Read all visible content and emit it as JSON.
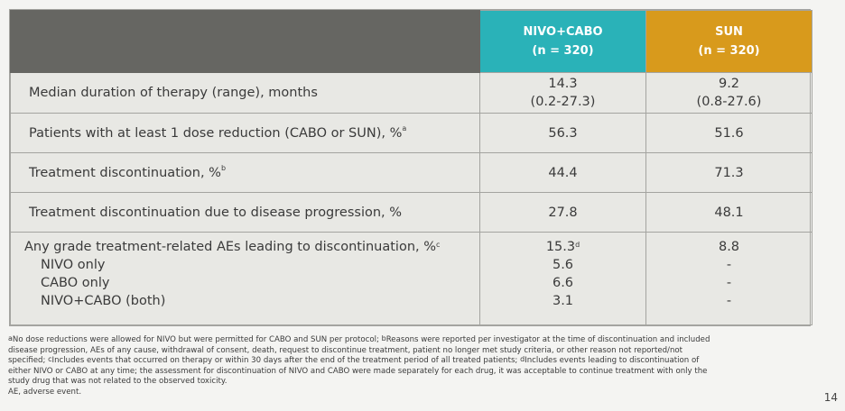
{
  "header": {
    "nivo_name": "NIVO+CABO",
    "nivo_n": "(n = 320)",
    "sun_name": "SUN",
    "sun_n": "(n = 320)",
    "nivo_color": "#2ab2b8",
    "sun_color": "#d89a1c"
  },
  "rows": [
    {
      "label": "Median duration of therapy (range), months",
      "nivo": [
        "14.3",
        "(0.2-27.3)"
      ],
      "sun": [
        "9.2",
        "(0.8-27.6)"
      ]
    },
    {
      "label": "Patients with at least 1 dose reduction (CABO or SUN), %",
      "label_sup": "a",
      "nivo": "56.3",
      "sun": "51.6"
    },
    {
      "label": "Treatment discontinuation, %",
      "label_sup": "b",
      "nivo": "44.4",
      "sun": "71.3"
    },
    {
      "label": "Treatment discontinuation due to disease progression, %",
      "nivo": "27.8",
      "sun": "48.1"
    },
    {
      "label": "Any grade treatment-related AEs leading to discontinuation, %",
      "label_sup": "c",
      "nivo": "15.3",
      "nivo_sup": "d",
      "sun": "8.8",
      "subrows": [
        {
          "label": "NIVO only",
          "nivo": "5.6",
          "sun": "-"
        },
        {
          "label": "CABO only",
          "nivo": "6.6",
          "sun": "-"
        },
        {
          "label": "NIVO+CABO (both)",
          "nivo": "3.1",
          "sun": "-"
        }
      ]
    }
  ],
  "footnotes": {
    "lines": [
      "No dose reductions were allowed for NIVO but were permitted for CABO and SUN per protocol; ",
      "disease progression, AEs of any cause, withdrawal of consent, death, request to discontinue treatment, patient no longer met study criteria, or other reason not reported/not",
      "specified; ",
      "either NIVO or CABO at any time; the assessment for discontinuation of NIVO and CABO were made separately for each drug, it was acceptable to continue treatment with only the",
      "study drug that was not related to the observed toxicity.",
      "AE, adverse event."
    ],
    "line1_sup_a": "a",
    "line1_sup_b": "b",
    "line1_rest": "Reasons were reported per investigator at the time of discontinuation and included",
    "line3_sup_c": "c",
    "line3_mid": "Includes events that occurred on therapy or within 30 days after the end of the treatment period of all treated patients; ",
    "line3_sup_d": "d",
    "line3_rest": "Includes events leading to discontinuation of"
  },
  "page_number": "14"
}
